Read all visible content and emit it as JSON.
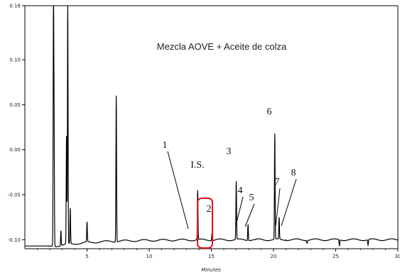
{
  "chart_data": {
    "type": "line",
    "title": "Mezcla AOVE + Aceite de colza",
    "xlabel": "Minutes",
    "ylabel": "",
    "xlim": [
      0,
      30
    ],
    "ylim": [
      -0.11,
      0.16
    ],
    "x_ticks": [
      5,
      10,
      15,
      20,
      25,
      30
    ],
    "x_tick_labels": [
      "5",
      "10",
      "15",
      "20",
      "25",
      "30"
    ],
    "y_ticks": [
      0.16,
      0.1,
      0.05,
      0.0,
      -0.05,
      -0.1
    ],
    "y_tick_labels": [
      "0.16",
      "0.10",
      "0.05",
      "0.00",
      "-0.05",
      "-0.10"
    ],
    "grid": false,
    "series": [
      {
        "name": "",
        "color": "#000000",
        "peaks": [
          {
            "x": 2.3,
            "y": 0.16
          },
          {
            "x": 2.35,
            "y": 0.02
          },
          {
            "x": 3.35,
            "y": 0.015
          },
          {
            "x": 3.45,
            "y": 0.16
          },
          {
            "x": 3.65,
            "y": -0.065
          },
          {
            "x": 2.9,
            "y": -0.09
          },
          {
            "x": 5.0,
            "y": -0.08
          },
          {
            "x": 7.35,
            "y": 0.06
          },
          {
            "x": 13.9,
            "y": -0.045
          },
          {
            "x": 15.05,
            "y": -0.093
          },
          {
            "x": 17.0,
            "y": -0.035
          },
          {
            "x": 17.95,
            "y": -0.083
          },
          {
            "x": 18.55,
            "y": -0.1
          },
          {
            "x": 20.1,
            "y": 0.018
          },
          {
            "x": 20.45,
            "y": -0.075
          },
          {
            "x": 21.0,
            "y": -0.1
          },
          {
            "x": 22.7,
            "y": -0.104
          },
          {
            "x": 25.3,
            "y": -0.107
          },
          {
            "x": 27.6,
            "y": -0.106
          }
        ]
      }
    ],
    "annotations": [
      {
        "label": "1",
        "x": 13.85
      },
      {
        "label": "I.S.",
        "x": 14.0
      },
      {
        "label": "2",
        "x": 15.05
      },
      {
        "label": "3",
        "x": 17.0
      },
      {
        "label": "4",
        "x": 17.65
      },
      {
        "label": "5",
        "x": 18.4
      },
      {
        "label": "6",
        "x": 20.1
      },
      {
        "label": "7",
        "x": 20.55
      },
      {
        "label": "8",
        "x": 20.95
      }
    ],
    "highlight": {
      "shape": "rounded-rect",
      "color": "#e0141e",
      "around": "2"
    }
  }
}
